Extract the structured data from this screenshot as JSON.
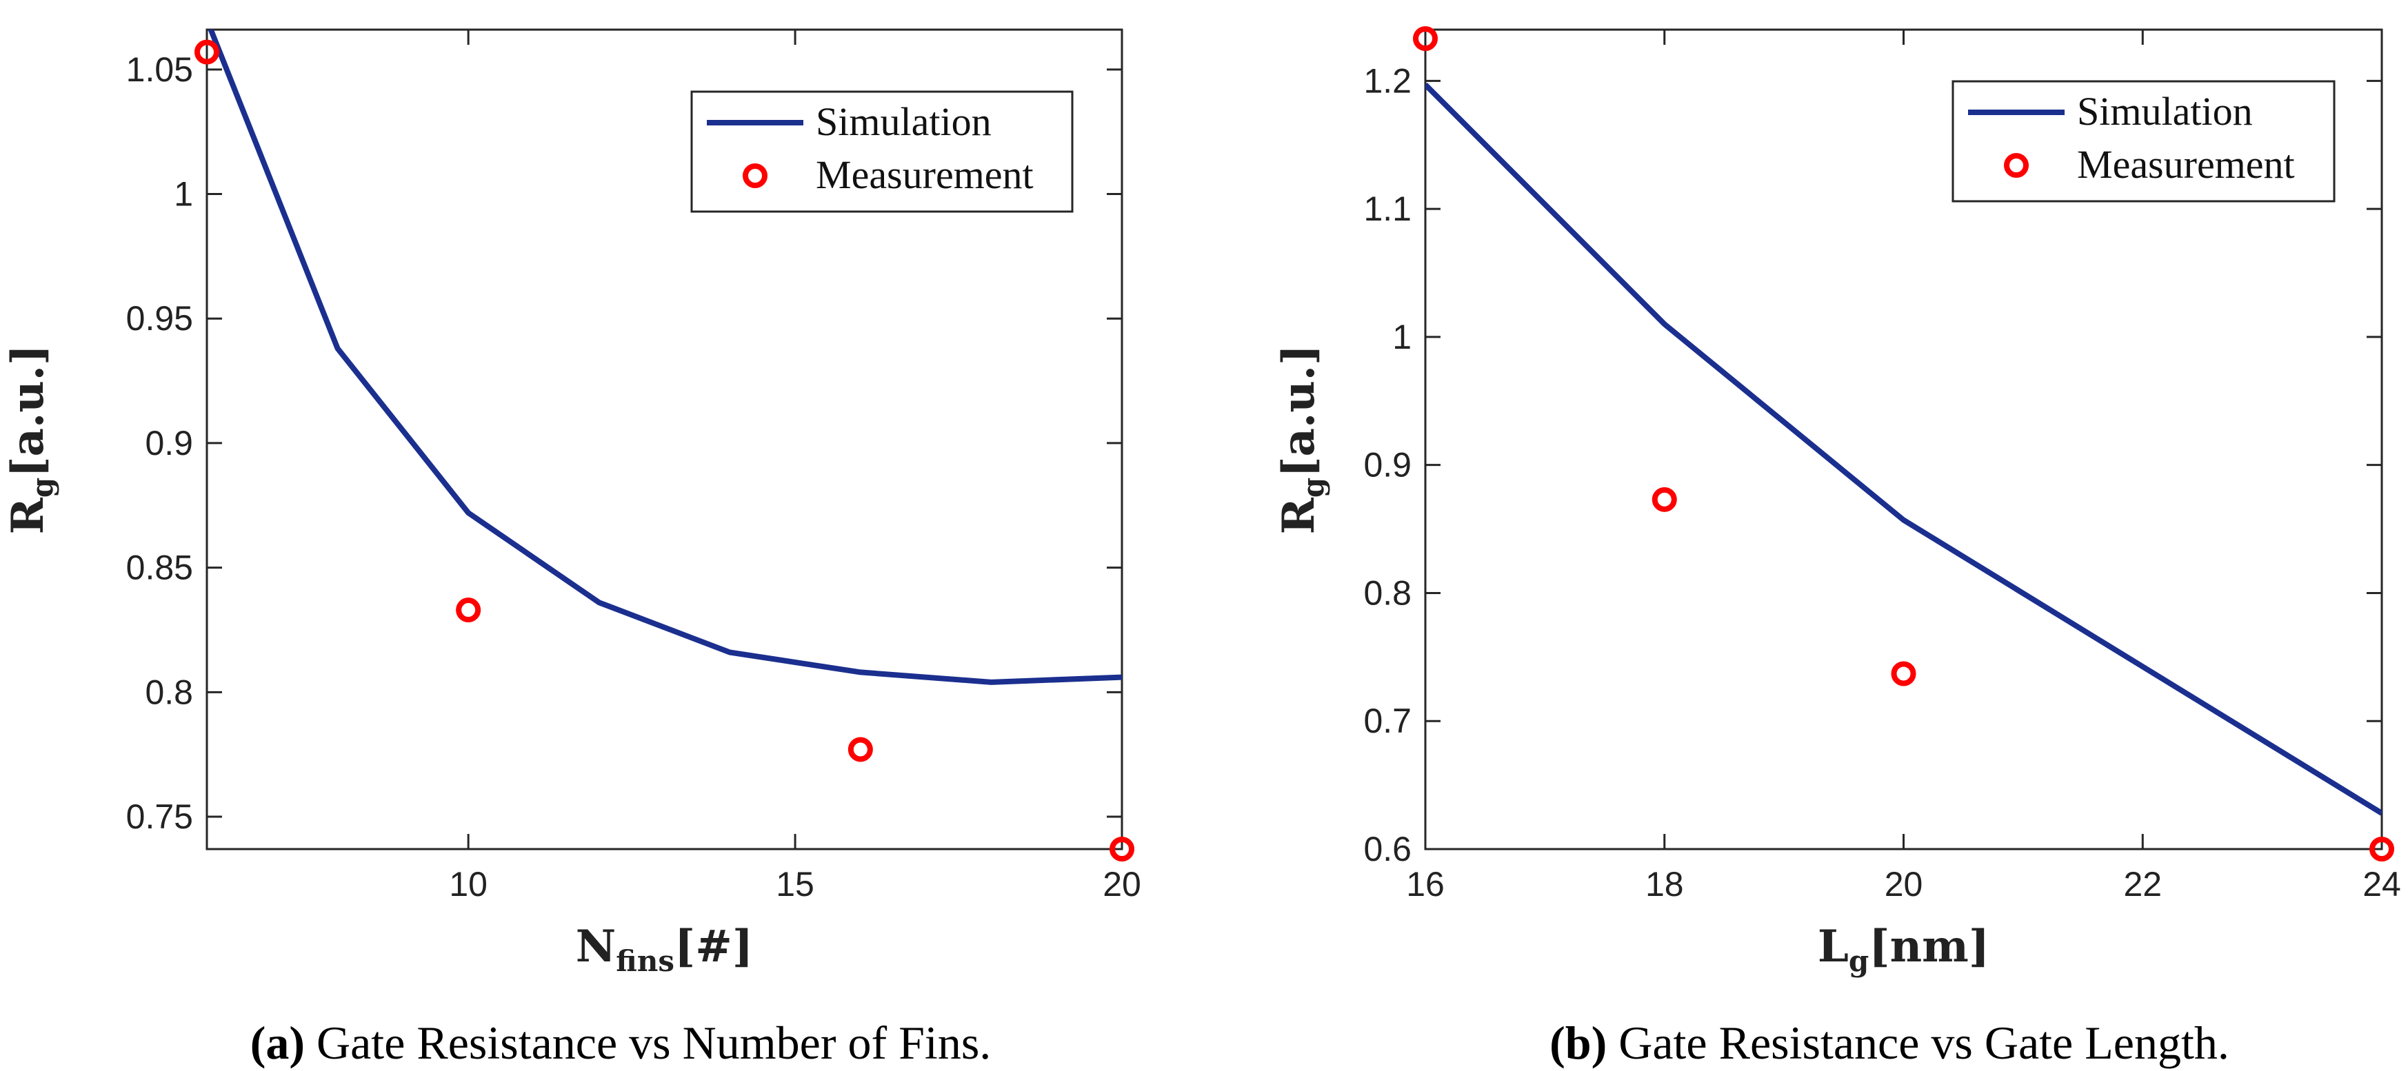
{
  "chart_data": [
    {
      "type": "line",
      "title": "",
      "caption_prefix": "(a)",
      "caption": "Gate Resistance vs Number of Fins.",
      "xlabel_main": "N",
      "xlabel_sub": "fins",
      "xlabel_unit": "[#]",
      "ylabel_main": "R",
      "ylabel_sub": "g",
      "ylabel_unit": "[a.u.]",
      "xlim": [
        6,
        20
      ],
      "ylim": [
        0.737,
        1.066
      ],
      "xticks": [
        10,
        15,
        20
      ],
      "xtick_labels": [
        "10",
        "15",
        "20"
      ],
      "yticks": [
        0.75,
        0.8,
        0.85,
        0.9,
        0.95,
        1.0,
        1.05
      ],
      "ytick_labels": [
        "0.75",
        "0.8",
        "0.85",
        "0.9",
        "0.95",
        "1",
        "1.05"
      ],
      "series": [
        {
          "name": "Simulation",
          "kind": "line",
          "x": [
            6,
            8,
            10,
            12,
            14,
            16,
            18,
            20
          ],
          "y": [
            1.07,
            0.938,
            0.872,
            0.836,
            0.816,
            0.808,
            0.804,
            0.806
          ]
        },
        {
          "name": "Measurement",
          "kind": "marker",
          "x": [
            6,
            10,
            16,
            20
          ],
          "y": [
            1.057,
            0.833,
            0.777,
            0.737
          ]
        }
      ],
      "legend": [
        "Simulation",
        "Measurement"
      ],
      "legend_position": "top-right"
    },
    {
      "type": "line",
      "title": "",
      "caption_prefix": "(b)",
      "caption": "Gate Resistance vs Gate Length.",
      "xlabel_main": "L",
      "xlabel_sub": "g",
      "xlabel_unit": "[nm]",
      "ylabel_main": "R",
      "ylabel_sub": "g",
      "ylabel_unit": "[a.u.]",
      "xlim": [
        16,
        24
      ],
      "ylim": [
        0.6,
        1.24
      ],
      "xticks": [
        16,
        18,
        20,
        22,
        24
      ],
      "xtick_labels": [
        "16",
        "18",
        "20",
        "22",
        "24"
      ],
      "yticks": [
        0.6,
        0.7,
        0.8,
        0.9,
        1.0,
        1.1,
        1.2
      ],
      "ytick_labels": [
        "0.6",
        "0.7",
        "0.8",
        "0.9",
        "1",
        "1.1",
        "1.2"
      ],
      "series": [
        {
          "name": "Simulation",
          "kind": "line",
          "x": [
            16,
            18,
            20,
            24
          ],
          "y": [
            1.197,
            1.01,
            0.857,
            0.628
          ]
        },
        {
          "name": "Measurement",
          "kind": "marker",
          "x": [
            16,
            18,
            20,
            24
          ],
          "y": [
            1.233,
            0.873,
            0.737,
            0.6
          ]
        }
      ],
      "legend": [
        "Simulation",
        "Measurement"
      ],
      "legend_position": "top-right"
    }
  ],
  "colors": {
    "line": "#1b2f8f",
    "marker": "#ff0000"
  }
}
